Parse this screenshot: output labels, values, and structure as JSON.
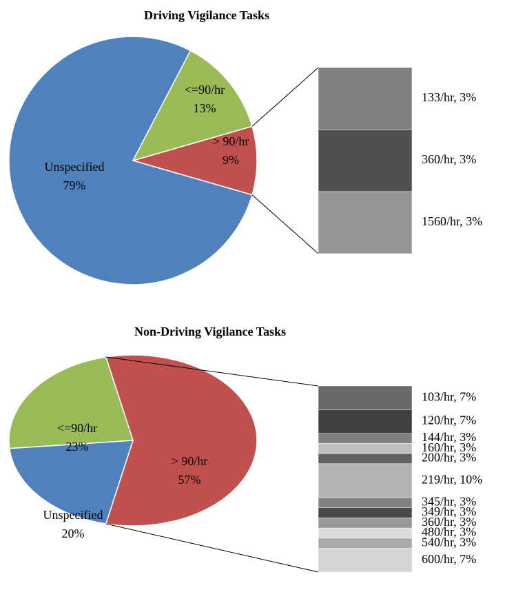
{
  "chart_data": [
    {
      "type": "pie",
      "title": "Driving Vigilance Tasks",
      "categories": [
        "> 90/hr",
        "Unspecified",
        "<=90/hr"
      ],
      "values": [
        9,
        79,
        13
      ],
      "value_labels": [
        "9%",
        "79%",
        "13%"
      ],
      "colors": [
        "#c0504d",
        "#4f81bd",
        "#9bbb59"
      ],
      "breakdown": {
        "values": [
          3,
          3,
          3
        ],
        "value_labels": [
          "133/hr, 3%",
          "360/hr, 3%",
          "1560/hr, 3%"
        ],
        "colors": [
          "#808080",
          "#505050",
          "#969696"
        ]
      }
    },
    {
      "type": "pie",
      "title": "Non-Driving Vigilance Tasks",
      "categories": [
        "> 90/hr",
        "Unspecified",
        "<=90/hr"
      ],
      "values": [
        57,
        20,
        23
      ],
      "value_labels": [
        "57%",
        "20%",
        "23%"
      ],
      "colors": [
        "#c0504d",
        "#4f81bd",
        "#9bbb59"
      ],
      "breakdown": {
        "values": [
          7,
          7,
          3,
          3,
          3,
          10,
          3,
          3,
          3,
          3,
          3,
          7
        ],
        "value_labels": [
          "103/hr, 7%",
          "120/hr, 7%",
          "144/hr, 3%",
          "160/hr, 3%",
          "200/hr, 3%",
          "219/hr, 10%",
          "345/hr, 3%",
          "349/hr, 3%",
          "360/hr, 3%",
          "480/hr, 3%",
          "540/hr, 3%",
          "600/hr, 7%"
        ],
        "colors": [
          "#696969",
          "#404040",
          "#808080",
          "#c0c0c0",
          "#606060",
          "#b4b4b4",
          "#808080",
          "#484848",
          "#999999",
          "#dcdcdc",
          "#aaaaaa",
          "#d4d4d4"
        ]
      }
    }
  ]
}
